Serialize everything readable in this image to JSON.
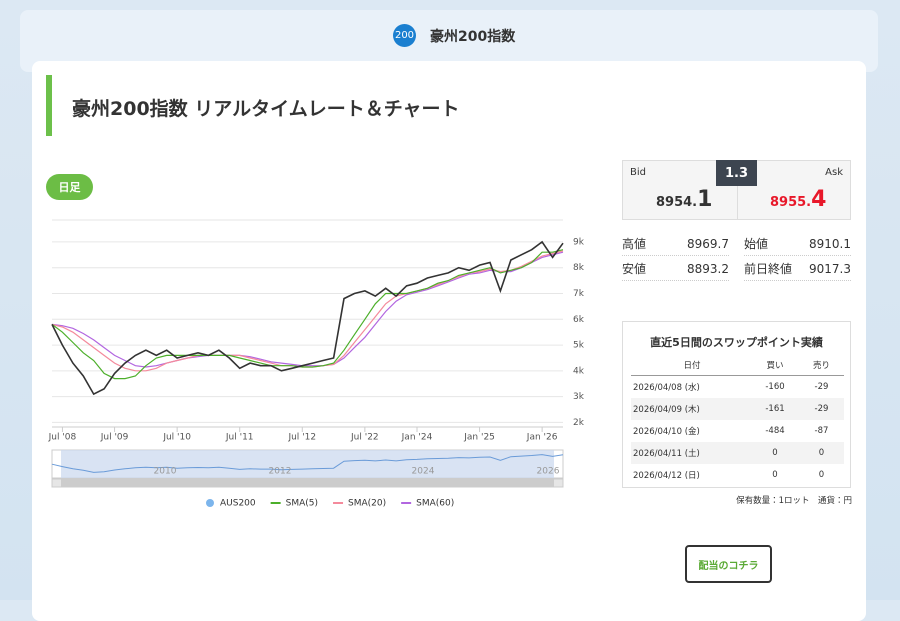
{
  "header": {
    "badge": "200",
    "title": "豪州200指数"
  },
  "page_title": "豪州200指数 リアルタイムレート＆チャート",
  "tab": "日足",
  "chart_data": {
    "type": "line",
    "grid": true,
    "xlim": [
      0,
      49
    ],
    "xticks": [
      {
        "value": 1,
        "label": "Jul '08"
      },
      {
        "value": 6,
        "label": "Jul '09"
      },
      {
        "value": 12,
        "label": "Jul '10"
      },
      {
        "value": 18,
        "label": "Jul '11"
      },
      {
        "value": 24,
        "label": "Jul '12"
      },
      {
        "value": 30,
        "label": "Jul '22"
      },
      {
        "value": 35,
        "label": "Jan '24"
      },
      {
        "value": 41,
        "label": "Jan '25"
      },
      {
        "value": 47,
        "label": "Jan '26"
      }
    ],
    "ylim": [
      1900,
      9850
    ],
    "yticks": [
      {
        "value": 2000,
        "label": "2k"
      },
      {
        "value": 3000,
        "label": "3k"
      },
      {
        "value": 4000,
        "label": "4k"
      },
      {
        "value": 5000,
        "label": "5k"
      },
      {
        "value": 6000,
        "label": "6k"
      },
      {
        "value": 7000,
        "label": "7k"
      },
      {
        "value": 8000,
        "label": "8k"
      },
      {
        "value": 9000,
        "label": "9k"
      }
    ],
    "series": [
      {
        "name": "AUS200",
        "color": "#333333",
        "values": [
          5800,
          5000,
          4300,
          3800,
          3100,
          3300,
          3900,
          4300,
          4600,
          4800,
          4600,
          4800,
          4500,
          4600,
          4700,
          4600,
          4800,
          4500,
          4100,
          4300,
          4200,
          4200,
          4000,
          4100,
          4200,
          4300,
          4400,
          4500,
          6800,
          7000,
          7100,
          6900,
          7200,
          6900,
          7300,
          7400,
          7600,
          7700,
          7800,
          8000,
          7900,
          8100,
          8200,
          7100,
          8300,
          8500,
          8700,
          9000,
          8400,
          8950
        ]
      },
      {
        "name": "SMA(5)",
        "color": "#4caf2a",
        "values": [
          5800,
          5500,
          5100,
          4700,
          4400,
          3900,
          3700,
          3700,
          3800,
          4200,
          4500,
          4600,
          4600,
          4600,
          4600,
          4600,
          4600,
          4600,
          4500,
          4400,
          4300,
          4200,
          4200,
          4200,
          4150,
          4150,
          4200,
          4300,
          4800,
          5400,
          6000,
          6600,
          7000,
          7000,
          7000,
          7100,
          7200,
          7400,
          7500,
          7700,
          7800,
          7900,
          8000,
          7800,
          7900,
          8000,
          8200,
          8600,
          8600,
          8700
        ]
      },
      {
        "name": "SMA(20)",
        "color": "#f48a9c",
        "values": [
          5800,
          5700,
          5500,
          5200,
          4900,
          4600,
          4300,
          4100,
          4000,
          4000,
          4100,
          4300,
          4400,
          4500,
          4600,
          4600,
          4600,
          4600,
          4600,
          4500,
          4400,
          4300,
          4200,
          4200,
          4150,
          4150,
          4200,
          4250,
          4600,
          5100,
          5600,
          6100,
          6600,
          6900,
          7000,
          7100,
          7200,
          7350,
          7500,
          7650,
          7800,
          7850,
          7950,
          7850,
          7900,
          8050,
          8250,
          8450,
          8550,
          8650
        ]
      },
      {
        "name": "SMA(60)",
        "color": "#b266e0",
        "values": [
          5800,
          5750,
          5650,
          5450,
          5200,
          4900,
          4600,
          4400,
          4200,
          4150,
          4200,
          4300,
          4400,
          4500,
          4550,
          4600,
          4600,
          4600,
          4600,
          4550,
          4450,
          4350,
          4300,
          4250,
          4200,
          4200,
          4200,
          4250,
          4500,
          4900,
          5300,
          5800,
          6300,
          6700,
          6950,
          7050,
          7150,
          7300,
          7450,
          7600,
          7750,
          7800,
          7900,
          7850,
          7850,
          8000,
          8200,
          8400,
          8500,
          8600
        ]
      }
    ]
  },
  "navigator": {
    "labels": [
      "2010",
      "2012",
      "2024",
      "2026"
    ]
  },
  "quote": {
    "bid_label": "Bid",
    "ask_label": "Ask",
    "spread": "1.3",
    "bid_main": "8954.",
    "bid_pip": "1",
    "ask_main": "8955.",
    "ask_pip": "4"
  },
  "stats": [
    {
      "label": "高値",
      "value": "8969.7"
    },
    {
      "label": "始値",
      "value": "8910.1"
    },
    {
      "label": "安値",
      "value": "8893.2"
    },
    {
      "label": "前日終値",
      "value": "9017.3"
    }
  ],
  "swap": {
    "title": "直近5日間のスワップポイント実績",
    "columns": [
      "日付",
      "買い",
      "売り"
    ],
    "rows": [
      [
        "2026/04/08 (水)",
        "-160",
        "-29"
      ],
      [
        "2026/04/09 (木)",
        "-161",
        "-29"
      ],
      [
        "2026/04/10 (金)",
        "-484",
        "-87"
      ],
      [
        "2026/04/11 (土)",
        "0",
        "0"
      ],
      [
        "2026/04/12 (日)",
        "0",
        "0"
      ]
    ],
    "note": "保有数量：1ロット　通貨：円"
  },
  "button": "配当のコチラ"
}
